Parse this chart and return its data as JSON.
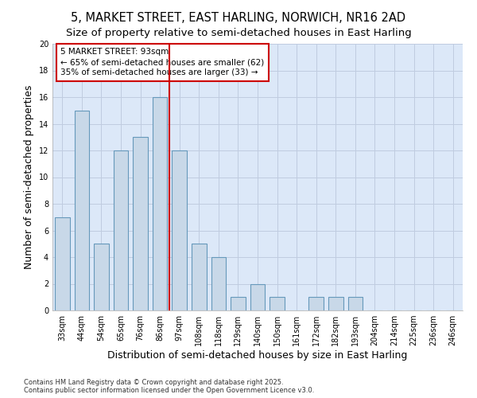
{
  "title_line1": "5, MARKET STREET, EAST HARLING, NORWICH, NR16 2AD",
  "title_line2": "Size of property relative to semi-detached houses in East Harling",
  "xlabel": "Distribution of semi-detached houses by size in East Harling",
  "ylabel": "Number of semi-detached properties",
  "categories": [
    "33sqm",
    "44sqm",
    "54sqm",
    "65sqm",
    "76sqm",
    "86sqm",
    "97sqm",
    "108sqm",
    "118sqm",
    "129sqm",
    "140sqm",
    "150sqm",
    "161sqm",
    "172sqm",
    "182sqm",
    "193sqm",
    "204sqm",
    "214sqm",
    "225sqm",
    "236sqm",
    "246sqm"
  ],
  "values": [
    7,
    15,
    5,
    12,
    13,
    16,
    12,
    5,
    4,
    1,
    2,
    1,
    0,
    1,
    1,
    1,
    0,
    0,
    0,
    0,
    0
  ],
  "bar_color": "#c8d8e8",
  "bar_edge_color": "#6699bb",
  "grid_color": "#c0cce0",
  "background_color": "#dce8f8",
  "vline_x": 5.5,
  "vline_color": "#cc0000",
  "annotation_title": "5 MARKET STREET: 93sqm",
  "annotation_line1": "← 65% of semi-detached houses are smaller (62)",
  "annotation_line2": "35% of semi-detached houses are larger (33) →",
  "annotation_box_color": "#cc0000",
  "ylim": [
    0,
    20
  ],
  "yticks": [
    0,
    2,
    4,
    6,
    8,
    10,
    12,
    14,
    16,
    18,
    20
  ],
  "footnote": "Contains HM Land Registry data © Crown copyright and database right 2025.\nContains public sector information licensed under the Open Government Licence v3.0.",
  "title_fontsize": 10.5,
  "subtitle_fontsize": 9.5,
  "axis_label_fontsize": 9,
  "tick_fontsize": 7,
  "annotation_fontsize": 7.5,
  "bar_width": 0.75
}
